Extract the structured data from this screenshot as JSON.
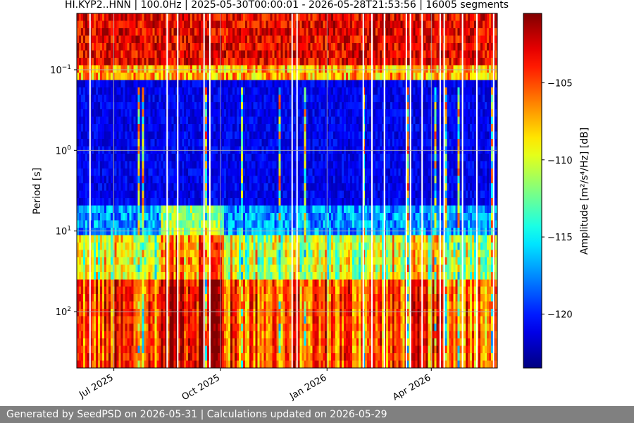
{
  "chart_data": {
    "type": "heatmap",
    "title": "HI.KYP2..HNN | 100.0Hz | 2025-05-30T00:00:01 - 2026-05-28T21:53:56 | 16005 segments",
    "xlabel": "",
    "ylabel": "Period [s]",
    "colorbar_label": "Amplitude [m²/s⁴/Hz] [dB]",
    "x_range": [
      "2025-05-30",
      "2026-05-28"
    ],
    "x_ticks": [
      {
        "date": "2025-07-01",
        "label": "Jul 2025"
      },
      {
        "date": "2025-10-01",
        "label": "Oct 2025"
      },
      {
        "date": "2026-01-01",
        "label": "Jan 2026"
      },
      {
        "date": "2026-04-01",
        "label": "Apr 2026"
      }
    ],
    "y_scale": "log",
    "y_range_period_s": [
      0.02,
      500
    ],
    "y_ticks": [
      {
        "period": 0.1,
        "base": "10",
        "exp": "−1"
      },
      {
        "period": 1,
        "base": "10",
        "exp": "0"
      },
      {
        "period": 10,
        "base": "10",
        "exp": "1"
      },
      {
        "period": 100,
        "base": "10",
        "exp": "2"
      }
    ],
    "grid": true,
    "colormap": "jet",
    "color_range_db": [
      -123.5,
      -100.5
    ],
    "colorbar_ticks": [
      {
        "value": -105,
        "label": "−105"
      },
      {
        "value": -110,
        "label": "−110"
      },
      {
        "value": -115,
        "label": "−115"
      },
      {
        "value": -120,
        "label": "−120"
      }
    ]
  },
  "footer": {
    "text": "Generated by SeedPSD on 2026-05-31 | Calculations updated on 2026-05-29"
  }
}
